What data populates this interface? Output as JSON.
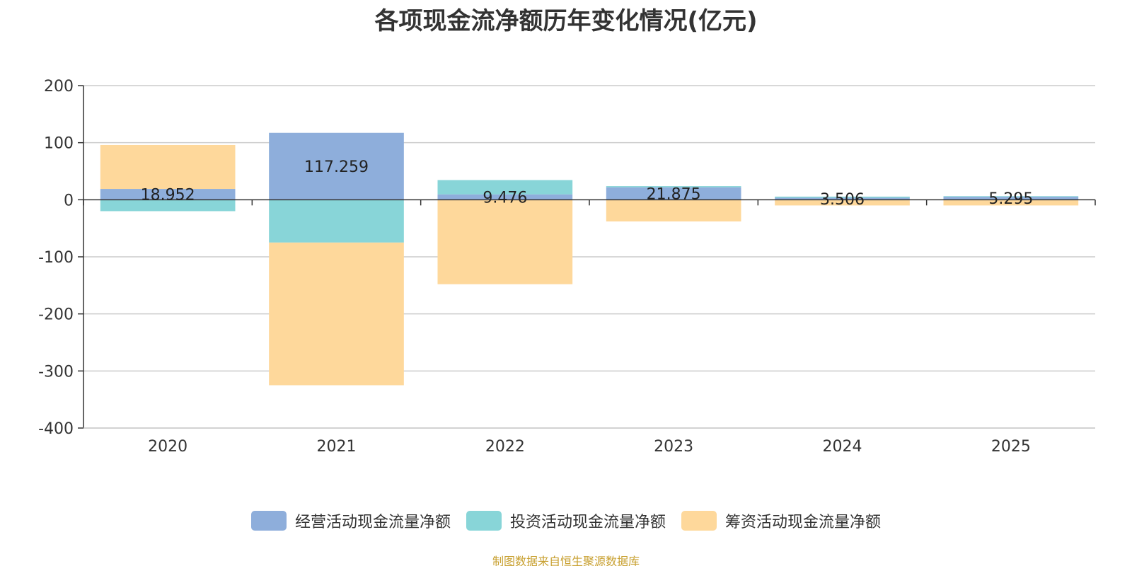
{
  "chart_data": {
    "type": "bar",
    "stacked": true,
    "title": "各项现金流净额历年变化情况(亿元)",
    "categories": [
      "2020",
      "2021",
      "2022",
      "2023",
      "2024",
      "2025"
    ],
    "series": [
      {
        "name": "经营活动现金流量净额",
        "color": "#8eaedb",
        "values": [
          18.952,
          117.259,
          9.476,
          21.875,
          3.506,
          5.295
        ],
        "labels": [
          "18.952",
          "117.259",
          "9.476",
          "21.875",
          "3.506",
          "5.295"
        ]
      },
      {
        "name": "投资活动现金流量净额",
        "color": "#88d5d8",
        "values": [
          -20,
          -75,
          25,
          2,
          2,
          1
        ],
        "labels": []
      },
      {
        "name": "筹资活动现金流量净额",
        "color": "#fed89b",
        "values": [
          77,
          -250,
          -148,
          -38,
          -10,
          -10
        ],
        "labels": []
      }
    ],
    "yticks": [
      "200",
      "100",
      "0",
      "-100",
      "-200",
      "-300",
      "-400"
    ],
    "ylim": [
      -400,
      200
    ],
    "grid": true,
    "legend_position": "bottom"
  },
  "source_note": "制图数据来自恒生聚源数据库"
}
